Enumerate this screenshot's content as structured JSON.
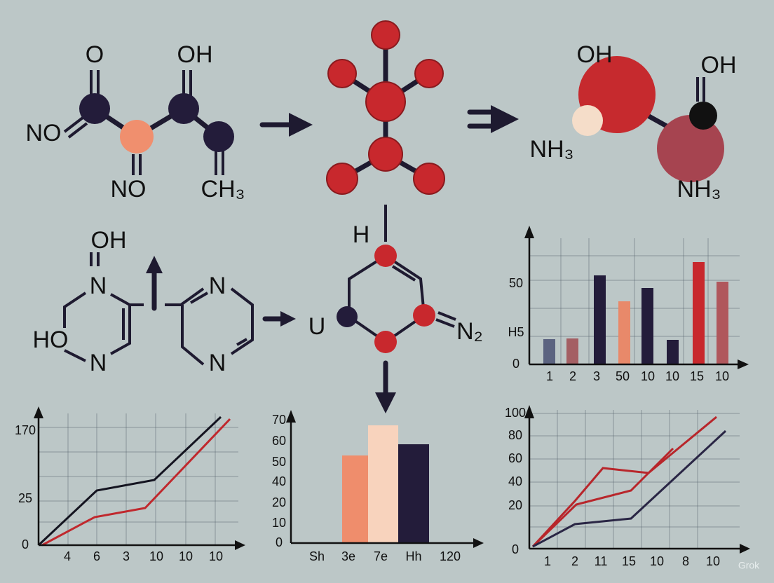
{
  "molecules": {
    "top_left": [
      "O",
      "OH",
      "NO",
      "NO",
      "CH₃"
    ],
    "top_right": [
      "OH",
      "OH",
      "NH₃",
      "NH₃"
    ],
    "middle_left": [
      "OH",
      "N",
      "N",
      "HO",
      "N",
      "N"
    ],
    "middle": [
      "H",
      "U",
      "N₂"
    ]
  },
  "charts": {
    "bar_right": {
      "y_labels": [
        "50",
        "H5",
        "0"
      ],
      "x_labels": [
        "1",
        "2",
        "3",
        "50",
        "10",
        "10",
        "15",
        "10"
      ]
    },
    "line_left": {
      "y_labels": [
        "170",
        "25",
        "0"
      ],
      "x_labels": [
        "4",
        "6",
        "3",
        "10",
        "10",
        "10"
      ]
    },
    "bar_middle": {
      "y_labels": [
        "70",
        "60",
        "50",
        "40",
        "20",
        "10",
        "0"
      ],
      "x_labels": [
        "Sh",
        "3e",
        "7e",
        "Hh",
        "120"
      ]
    },
    "line_right": {
      "y_labels": [
        "100",
        "80",
        "60",
        "40",
        "20",
        "0"
      ],
      "x_labels": [
        "1",
        "2",
        "11",
        "15",
        "10",
        "8",
        "10"
      ]
    }
  },
  "watermark": "Grok"
}
